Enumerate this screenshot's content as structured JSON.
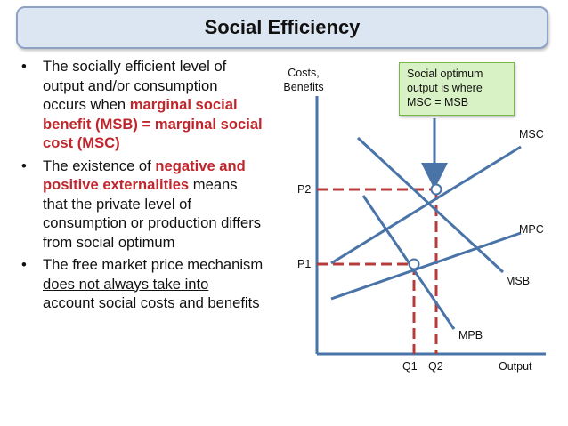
{
  "slide": {
    "title": "Social Efficiency"
  },
  "bullets": [
    {
      "parts": [
        {
          "text": "The socially efficient level of output and/or consumption occurs when ",
          "style": "normal"
        },
        {
          "text": "marginal social benefit (MSB) = marginal social cost (MSC)",
          "style": "red"
        }
      ]
    },
    {
      "parts": [
        {
          "text": "The existence of ",
          "style": "normal"
        },
        {
          "text": "negative and positive externalities",
          "style": "red"
        },
        {
          "text": " means that the private level of consumption or production differs from social optimum",
          "style": "normal"
        }
      ]
    },
    {
      "parts": [
        {
          "text": "The free market price mechanism ",
          "style": "normal"
        },
        {
          "text": "does not always take into account",
          "style": "underline"
        },
        {
          "text": " social costs and benefits",
          "style": "normal"
        }
      ]
    }
  ],
  "diagram": {
    "y_axis_label_line1": "Costs,",
    "y_axis_label_line2": "Benefits",
    "x_axis_label": "Output",
    "callout_line1": "Social optimum",
    "callout_line2": "output is where",
    "callout_line3": "MSC = MSB",
    "curves": {
      "msc": "MSC",
      "mpc": "MPC",
      "msb": "MSB",
      "mpb": "MPB"
    },
    "price_labels": {
      "p1": "P1",
      "p2": "P2"
    },
    "quantity_labels": {
      "q1": "Q1",
      "q2": "Q2"
    },
    "colors": {
      "curve": "#4a74a8",
      "dashed": "#b73b3b",
      "axis": "#4a74a8",
      "arrow": "#4a74a8"
    }
  }
}
